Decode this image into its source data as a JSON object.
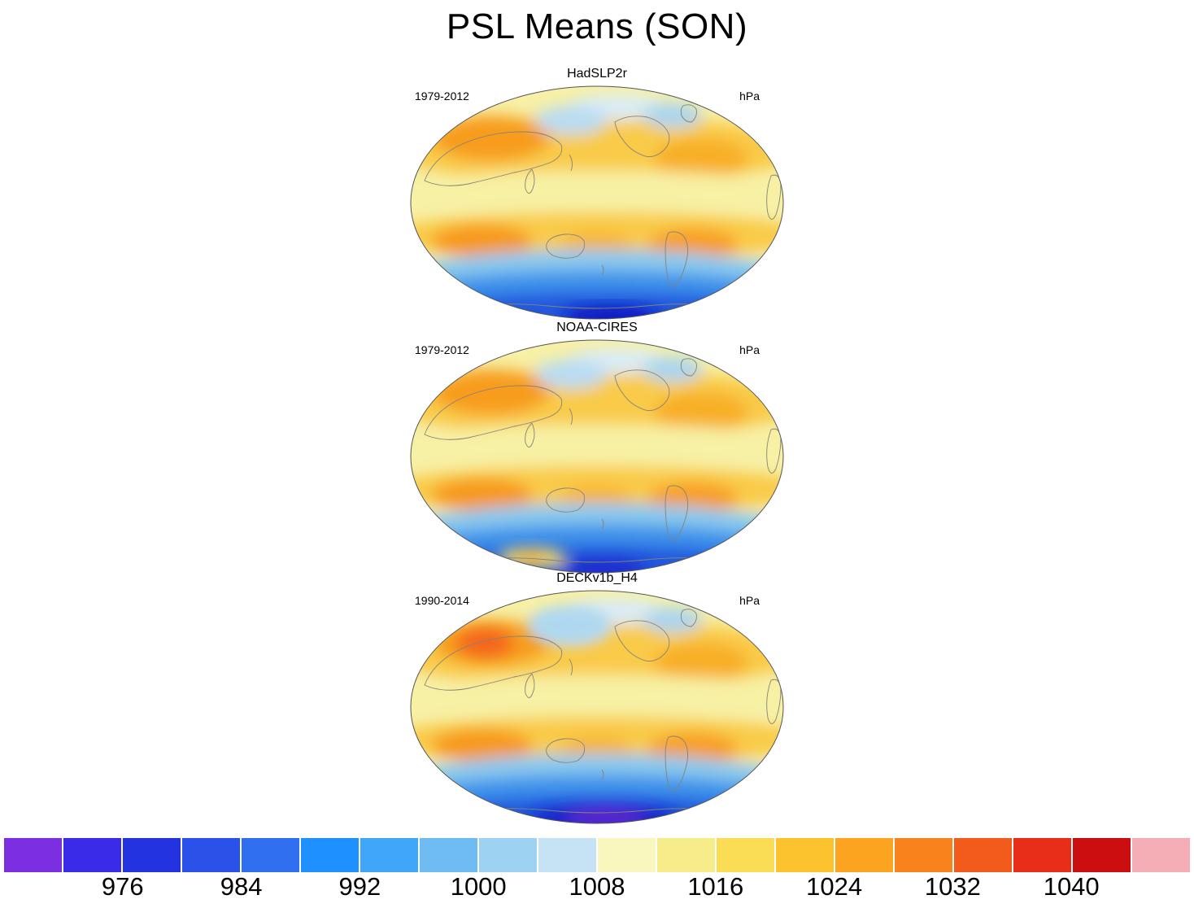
{
  "figure": {
    "title": "PSL Means (SON)"
  },
  "panels": [
    {
      "name": "HadSLP2r",
      "period": "1979-2012",
      "units": "hPa"
    },
    {
      "name": "NOAA-CIRES",
      "period": "1979-2012",
      "units": "hPa"
    },
    {
      "name": "DECKv1b_H4",
      "period": "1990-2014",
      "units": "hPa"
    }
  ],
  "colorbar": {
    "tick_labels": [
      "976",
      "984",
      "992",
      "1000",
      "1008",
      "1016",
      "1024",
      "1032",
      "1040"
    ],
    "colors": [
      "#7B2FE0",
      "#3A2BE8",
      "#2433E0",
      "#2B52E8",
      "#2F6FF0",
      "#1E90FF",
      "#3FA6F8",
      "#6FBCF2",
      "#9ED2F2",
      "#C6E2F5",
      "#F9F6BE",
      "#F7EC8A",
      "#FBDC55",
      "#FDC32F",
      "#FCA41F",
      "#F8821C",
      "#F25B1C",
      "#E82E18",
      "#CB0E10",
      "#F6AEB6"
    ]
  },
  "chart_data": {
    "type": "heatmap",
    "title": "PSL Means (SON)",
    "variable": "PSL (sea level pressure)",
    "season": "SON",
    "units": "hPa",
    "panels": [
      {
        "dataset": "HadSLP2r",
        "period": "1979-2012"
      },
      {
        "dataset": "NOAA-CIRES",
        "period": "1979-2012"
      },
      {
        "dataset": "DECKv1b_H4",
        "period": "1990-2014"
      }
    ],
    "colorbar_levels": [
      968,
      972,
      976,
      980,
      984,
      988,
      992,
      996,
      1000,
      1004,
      1008,
      1012,
      1016,
      1020,
      1024,
      1028,
      1032,
      1036,
      1040,
      1044,
      1048
    ],
    "tick_values": [
      976,
      984,
      992,
      1000,
      1008,
      1016,
      1024,
      1032,
      1040
    ],
    "legend_position": "bottom",
    "grid": false,
    "projection": "global oval projection, Pacific-centered; high pressure (orange/red) in subtropics, deep low pressure (blue/purple) around Antarctica, weak lows (light blue) in northern high latitudes"
  }
}
